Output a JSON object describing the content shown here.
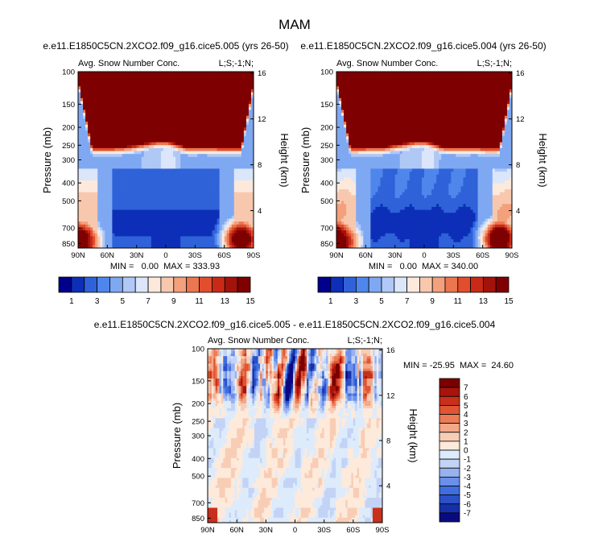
{
  "figure": {
    "title": "MAM",
    "diff_min_max": "MIN = -25.95  MAX =  24.60"
  },
  "colors": {
    "nonneg_scale": [
      "#00008b",
      "#0d2fb8",
      "#2f62d8",
      "#4f86ec",
      "#7fa8f2",
      "#afc8f6",
      "#dbe6fb",
      "#fde9dc",
      "#f8c8ae",
      "#f3a07c",
      "#ec7650",
      "#e24d2e",
      "#c92a17",
      "#a2130b",
      "#7f0000"
    ],
    "diff_scale": [
      "#0a0a80",
      "#1530a8",
      "#2b50c8",
      "#3e6ee0",
      "#6a90ea",
      "#98b2f0",
      "#c3d3f6",
      "#ddebfb",
      "#fdeadb",
      "#f8cdb5",
      "#f3a889",
      "#ec7c58",
      "#e05533",
      "#c8301c",
      "#a8140c",
      "#7a0000"
    ],
    "frame": "#000000"
  },
  "chart_data": [
    {
      "type": "heatmap",
      "id": "panel-a",
      "title": "e.e11.E1850C5CN.2XCO2.f09_g16.cice5.005 (yrs 26-50)",
      "subtitle_left": "Avg. Snow Number Conc.",
      "subtitle_right": "L;S;-1;N;",
      "xlabel": "",
      "ylabel": "Pressure (mb)",
      "y2label": "Height (km)",
      "x_ticks": [
        "90N",
        "60N",
        "30N",
        "0",
        "30S",
        "60S",
        "90S"
      ],
      "y_ticks": [
        "100",
        "150",
        "200",
        "250",
        "300",
        "400",
        "500",
        "700",
        "850"
      ],
      "y2_ticks": [
        "16",
        "12",
        "8",
        "4"
      ],
      "min_max_text": "MIN =   0.00  MAX = 333.93",
      "min": 0.0,
      "max": 333.93,
      "variant": 0
    },
    {
      "type": "heatmap",
      "id": "panel-b",
      "title": "e.e11.E1850C5CN.2XCO2.f09_g16.cice5.004 (yrs 26-50)",
      "subtitle_left": "Avg. Snow Number Conc.",
      "subtitle_right": "L;S;-1;N;",
      "xlabel": "",
      "ylabel": "Pressure (mb)",
      "y2label": "Height (km)",
      "x_ticks": [
        "90N",
        "60N",
        "30N",
        "0",
        "30S",
        "60S",
        "90S"
      ],
      "y_ticks": [
        "100",
        "150",
        "200",
        "250",
        "300",
        "400",
        "500",
        "700",
        "850"
      ],
      "y2_ticks": [
        "16",
        "12",
        "8",
        "4"
      ],
      "min_max_text": "MIN =   0.00  MAX = 340.00",
      "min": 0.0,
      "max": 340.0,
      "variant": 1
    },
    {
      "type": "heatmap",
      "id": "panel-diff",
      "title": "e.e11.E1850C5CN.2XCO2.f09_g16.cice5.005 - e.e11.E1850C5CN.2XCO2.f09_g16.cice5.004",
      "subtitle_left": "Avg. Snow Number Conc.",
      "subtitle_right": "L;S;-1;N;",
      "xlabel": "",
      "ylabel": "Pressure (mb)",
      "y2label": "Height (km)",
      "x_ticks": [
        "90N",
        "60N",
        "30N",
        "0",
        "30S",
        "60S",
        "90S"
      ],
      "y_ticks": [
        "100",
        "150",
        "200",
        "250",
        "300",
        "400",
        "500",
        "700",
        "850"
      ],
      "y2_ticks": [
        "16",
        "12",
        "8",
        "4"
      ],
      "min": -25.95,
      "max": 24.6
    }
  ],
  "colorbar_top": {
    "labels": [
      "1",
      "3",
      "5",
      "7",
      "9",
      "11",
      "13",
      "15"
    ],
    "levels": [
      1,
      2,
      3,
      4,
      5,
      6,
      7,
      8,
      9,
      10,
      11,
      12,
      13,
      14,
      15
    ]
  },
  "colorbar_diff": {
    "labels": [
      "7",
      "6",
      "5",
      "4",
      "3",
      "2",
      "1",
      "0",
      "-1",
      "-2",
      "-3",
      "-4",
      "-5",
      "-6",
      "-7"
    ]
  }
}
